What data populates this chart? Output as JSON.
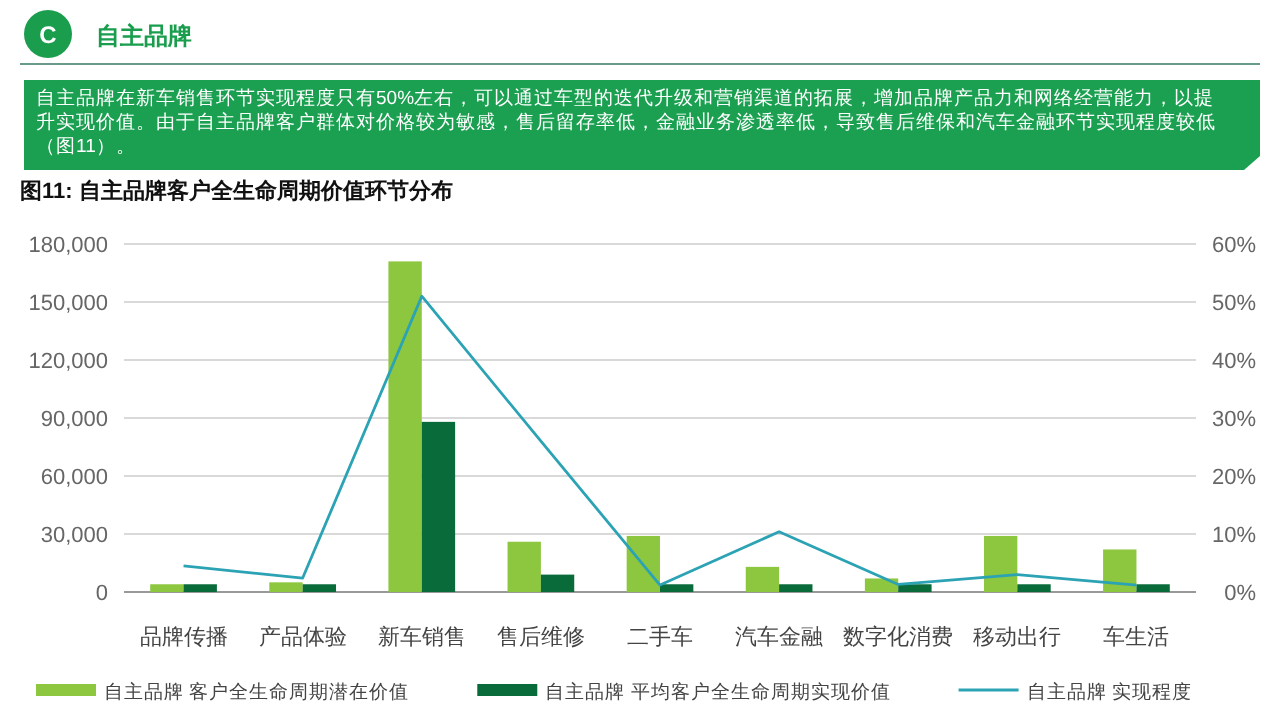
{
  "chart_data": {
    "type": "bar",
    "title": "图11: 自主品牌客户全生命周期价值环节分布",
    "annotations": [
      "C",
      "自主品牌",
      "自主品牌在新车销售环节实现程度只有50%左右，可以通过车型的迭代升级和营销渠道的拓展，增加品牌产品力和网络经营能力，以提升实现价值。由于自主品牌客户群体对价格较为敏感，售后留存率低，金融业务渗透率低，导致售后维保和汽车金融环节实现程度较低（图11）。"
    ],
    "categories": [
      "品牌传播",
      "产品体验",
      "新车销售",
      "售后维修",
      "二手车",
      "汽车金融",
      "数字化消费",
      "移动出行",
      "车生活"
    ],
    "series": [
      {
        "name": "自主品牌 客户全生命周期潜在价值",
        "color": "#8dc63f",
        "values": [
          4000,
          5000,
          171000,
          26000,
          29000,
          13000,
          7000,
          29000,
          22000
        ]
      },
      {
        "name": "自主品牌 平均客户全生命周期实现价值",
        "color": "#0a6b3a",
        "values": [
          4000,
          4000,
          88000,
          9000,
          4000,
          4000,
          4000,
          4000,
          4000
        ]
      },
      {
        "name": "自主品牌 实现程度",
        "type": "line",
        "axis": "y2",
        "color": "#2ba3b5",
        "values": [
          4.5,
          2.4,
          51,
          26,
          1.2,
          10.4,
          1.3,
          3,
          1.2
        ]
      }
    ],
    "ylim": [
      0,
      180000
    ],
    "yticks": [
      {
        "value": 0,
        "label": "0"
      },
      {
        "value": 30000,
        "label": "30,000"
      },
      {
        "value": 60000,
        "label": "60,000"
      },
      {
        "value": 90000,
        "label": "90,000"
      },
      {
        "value": 120000,
        "label": "120,000"
      },
      {
        "value": 150000,
        "label": "150,000"
      },
      {
        "value": 180000,
        "label": "180,000"
      }
    ],
    "y2lim": [
      0,
      60
    ],
    "y2ticks": [
      {
        "value": 0,
        "label": "0%"
      },
      {
        "value": 10,
        "label": "10%"
      },
      {
        "value": 20,
        "label": "20%"
      },
      {
        "value": 30,
        "label": "30%"
      },
      {
        "value": 40,
        "label": "40%"
      },
      {
        "value": 50,
        "label": "50%"
      },
      {
        "value": 60,
        "label": "60%"
      }
    ],
    "grid": "y",
    "legend": "bottom"
  }
}
